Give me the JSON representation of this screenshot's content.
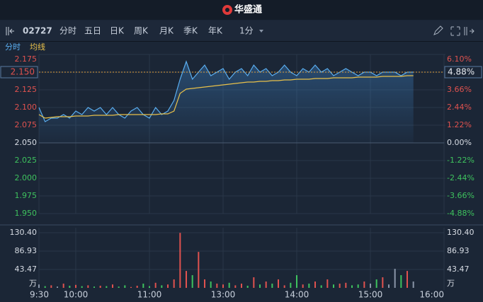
{
  "header": {
    "logo": "华盛通"
  },
  "toolbar": {
    "code": "02727",
    "tabs": [
      "分时",
      "五日",
      "日K",
      "周K",
      "月K",
      "季K",
      "年K"
    ],
    "interval": "1分"
  },
  "chart_data": {
    "type": "line",
    "x": [
      0,
      5,
      10,
      15,
      20,
      25,
      30,
      35,
      40,
      45,
      50,
      55,
      60,
      65,
      70,
      75,
      80,
      85,
      90,
      95,
      100,
      105,
      110,
      115,
      120,
      125,
      130,
      135,
      140,
      145,
      150,
      155,
      160,
      165,
      170,
      175,
      180,
      185,
      190,
      195,
      200,
      205,
      210,
      215,
      220,
      225,
      230,
      235,
      240,
      245,
      250,
      255,
      260,
      265,
      270,
      275,
      280,
      285,
      290,
      295,
      300,
      305
    ],
    "xlim": [
      0,
      330
    ],
    "xticks": [
      {
        "value": 0,
        "label": "9:30"
      },
      {
        "value": 30,
        "label": "10:00"
      },
      {
        "value": 90,
        "label": "11:00"
      },
      {
        "value": 150,
        "label": "13:00"
      },
      {
        "value": 210,
        "label": "14:00"
      },
      {
        "value": 270,
        "label": "15:00"
      },
      {
        "value": 330,
        "label": "16:00"
      }
    ],
    "ylim": [
      1.95,
      2.175
    ],
    "yticks": [
      2.175,
      {
        "value": 2.15,
        "label": "2.150"
      },
      2.125,
      {
        "value": 2.1,
        "label": "2.100"
      },
      2.075,
      {
        "value": 2.05,
        "label": "2.050"
      },
      2.025,
      {
        "value": 2.0,
        "label": "2.000"
      },
      1.975,
      {
        "value": 1.95,
        "label": "1.950"
      }
    ],
    "y2lim": [
      -4.88,
      6.1
    ],
    "y2ticks": [
      {
        "value": 6.1,
        "label": "6.10%"
      },
      {
        "value": 4.88,
        "label": "4.88%"
      },
      {
        "value": 3.66,
        "label": "3.66%"
      },
      {
        "value": 2.44,
        "label": "2.44%"
      },
      {
        "value": 1.22,
        "label": "1.22%"
      },
      {
        "value": 0,
        "label": "0.00%"
      },
      {
        "value": -1.22,
        "label": "-1.22%"
      },
      {
        "value": -2.44,
        "label": "-2.44%"
      },
      {
        "value": -3.66,
        "label": "-3.66%"
      },
      {
        "value": -4.88,
        "label": "-4.88%"
      }
    ],
    "series": [
      {
        "name": "分时",
        "color": "#5aaef0",
        "values": [
          2.1,
          2.08,
          2.085,
          2.085,
          2.09,
          2.085,
          2.095,
          2.09,
          2.1,
          2.095,
          2.1,
          2.09,
          2.1,
          2.09,
          2.085,
          2.095,
          2.1,
          2.09,
          2.085,
          2.1,
          2.09,
          2.095,
          2.11,
          2.14,
          2.165,
          2.14,
          2.15,
          2.16,
          2.145,
          2.15,
          2.155,
          2.14,
          2.15,
          2.155,
          2.145,
          2.16,
          2.15,
          2.155,
          2.145,
          2.15,
          2.16,
          2.15,
          2.145,
          2.155,
          2.15,
          2.16,
          2.15,
          2.155,
          2.145,
          2.15,
          2.155,
          2.15,
          2.145,
          2.15,
          2.15,
          2.145,
          2.15,
          2.15,
          2.15,
          2.145,
          2.15,
          2.15
        ]
      },
      {
        "name": "均线",
        "color": "#e8c04a",
        "values": [
          2.09,
          2.085,
          2.086,
          2.087,
          2.087,
          2.087,
          2.088,
          2.088,
          2.088,
          2.089,
          2.089,
          2.089,
          2.089,
          2.09,
          2.09,
          2.09,
          2.09,
          2.09,
          2.09,
          2.09,
          2.091,
          2.091,
          2.095,
          2.12,
          2.126,
          2.127,
          2.128,
          2.129,
          2.13,
          2.131,
          2.132,
          2.133,
          2.134,
          2.135,
          2.136,
          2.136,
          2.137,
          2.137,
          2.138,
          2.138,
          2.139,
          2.139,
          2.14,
          2.14,
          2.14,
          2.141,
          2.141,
          2.141,
          2.142,
          2.142,
          2.142,
          2.142,
          2.143,
          2.143,
          2.143,
          2.143,
          2.144,
          2.144,
          2.144,
          2.144,
          2.145,
          2.145
        ]
      }
    ],
    "last_price": {
      "value": 2.15,
      "label": "2.150"
    },
    "last_change": {
      "value": 4.88,
      "label": "4.88%"
    },
    "volume": {
      "type": "bar",
      "unit": "万",
      "ylim": [
        0,
        130.4
      ],
      "yticks": [
        {
          "value": 130.4,
          "label": "130.40"
        },
        86.93,
        43.47
      ],
      "values": [
        8,
        4,
        6,
        3,
        10,
        5,
        7,
        4,
        6,
        3,
        5,
        4,
        8,
        3,
        6,
        2,
        5,
        10,
        4,
        12,
        6,
        8,
        20,
        130,
        40,
        30,
        85,
        20,
        15,
        10,
        8,
        12,
        6,
        10,
        5,
        25,
        8,
        15,
        10,
        20,
        6,
        12,
        30,
        8,
        10,
        15,
        6,
        20,
        8,
        10,
        12,
        6,
        8,
        15,
        10,
        20,
        25,
        8,
        45,
        30,
        40,
        15
      ]
    }
  }
}
